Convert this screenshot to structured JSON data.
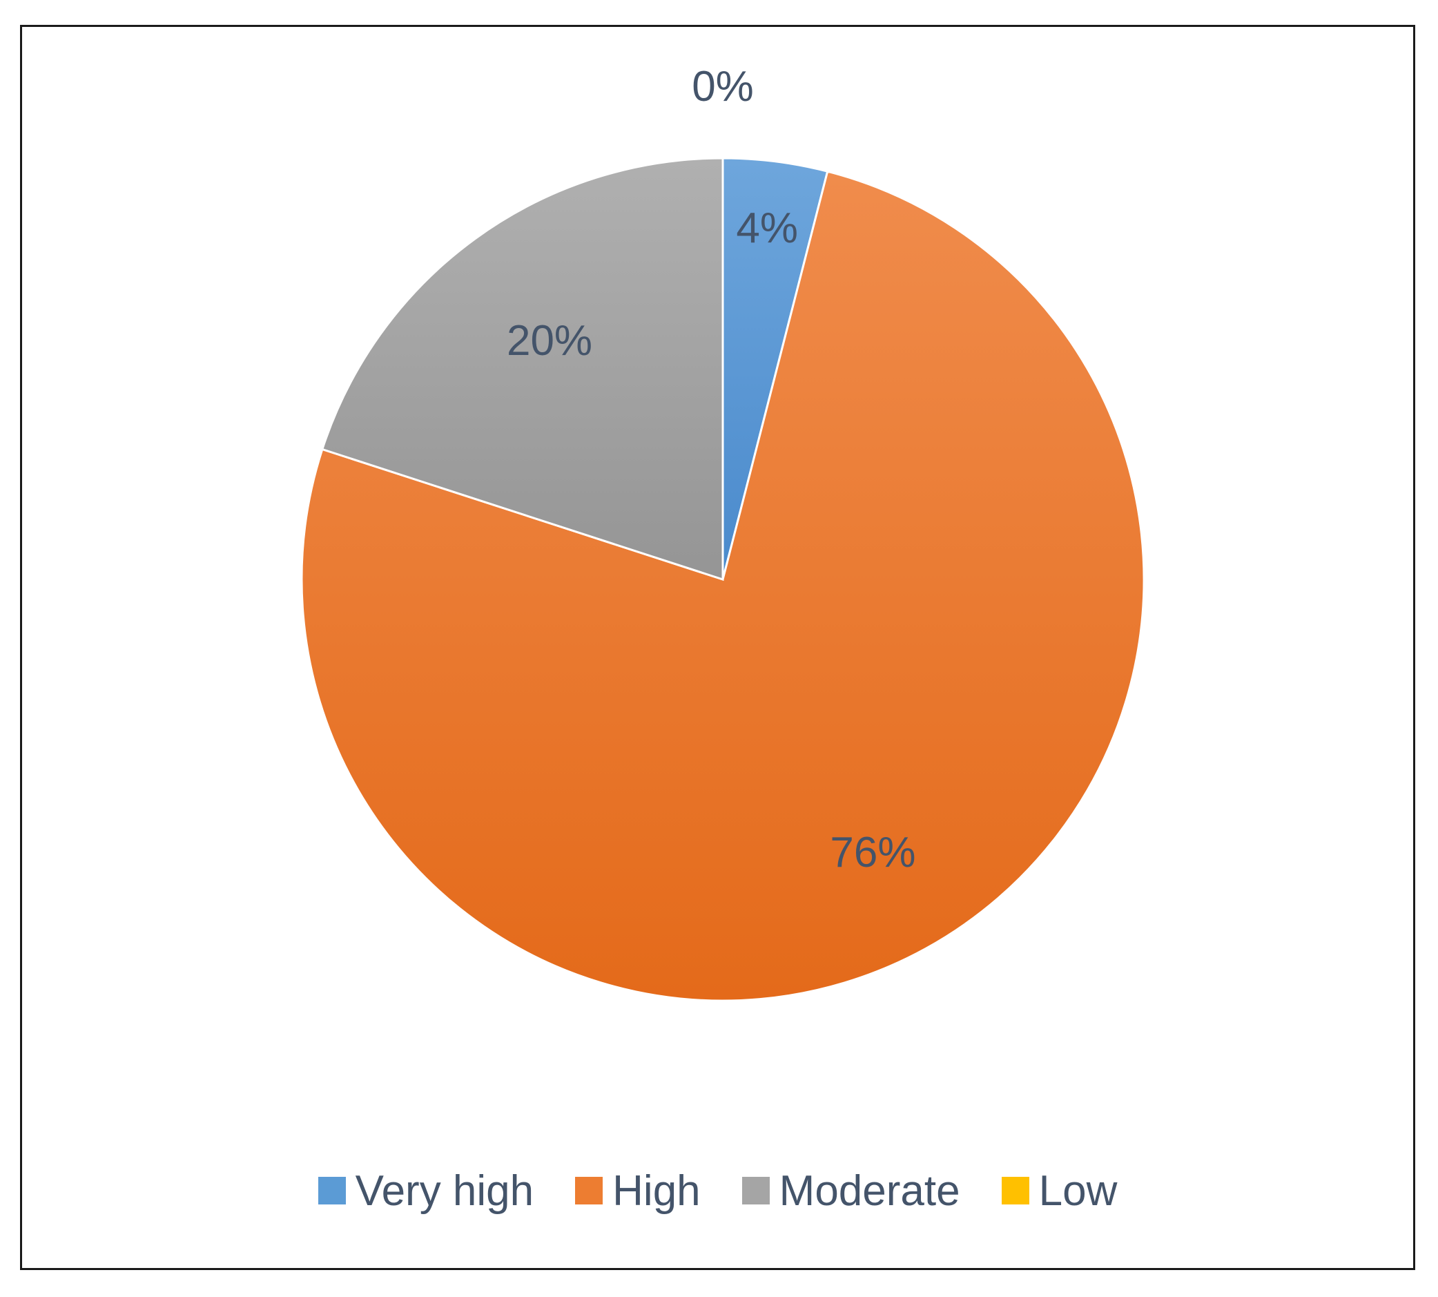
{
  "chart_data": {
    "type": "pie",
    "categories": [
      "Very high",
      "High",
      "Moderate",
      "Low"
    ],
    "values": [
      4,
      76,
      20,
      0
    ],
    "value_labels": [
      "4%",
      "76%",
      "20%",
      "0%"
    ],
    "colors": [
      "#5b9bd5",
      "#ed7d31",
      "#a5a5a5",
      "#ffc000"
    ],
    "legend_position": "bottom",
    "start_angle": "12 o'clock",
    "direction": "clockwise"
  }
}
